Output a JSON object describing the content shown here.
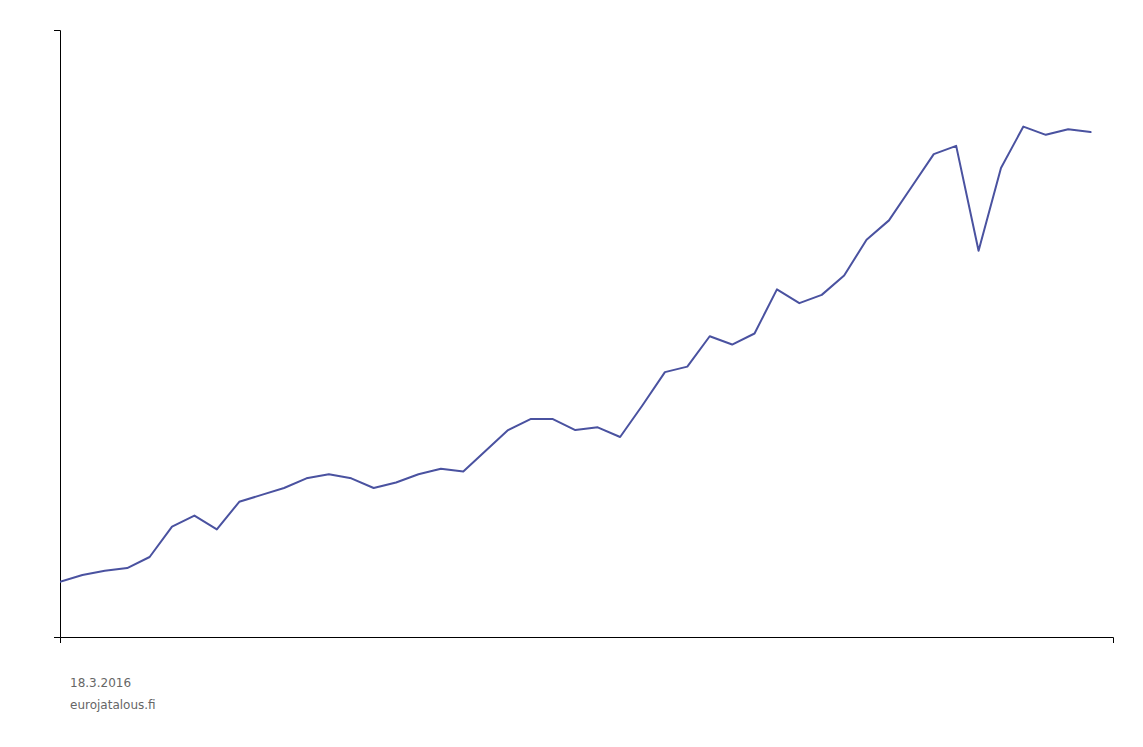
{
  "chart_data": {
    "type": "line",
    "x": [
      1968,
      1969,
      1970,
      1971,
      1972,
      1973,
      1974,
      1975,
      1976,
      1977,
      1978,
      1979,
      1980,
      1981,
      1982,
      1983,
      1984,
      1985,
      1986,
      1987,
      1988,
      1989,
      1990,
      1991,
      1992,
      1993,
      1994,
      1995,
      1996,
      1997,
      1998,
      1999,
      2000,
      2001,
      2002,
      2003,
      2004,
      2005,
      2006,
      2007,
      2008,
      2009,
      2010,
      2011,
      2012,
      2013,
      2014
    ],
    "values": [
      100,
      105,
      108,
      110,
      118,
      140,
      148,
      138,
      158,
      163,
      168,
      175,
      178,
      175,
      168,
      172,
      178,
      182,
      180,
      195,
      210,
      218,
      218,
      210,
      212,
      205,
      228,
      252,
      256,
      278,
      272,
      280,
      312,
      302,
      308,
      322,
      348,
      362,
      386,
      410,
      416,
      340,
      400,
      430,
      424,
      428,
      426
    ],
    "color": "#4a52a0",
    "xlim": [
      1968,
      2015
    ],
    "ylim": [
      60,
      500
    ],
    "tick_labels": false,
    "grid": false,
    "annotations": [
      "18.3.2016",
      "eurojatalous.fi"
    ]
  }
}
